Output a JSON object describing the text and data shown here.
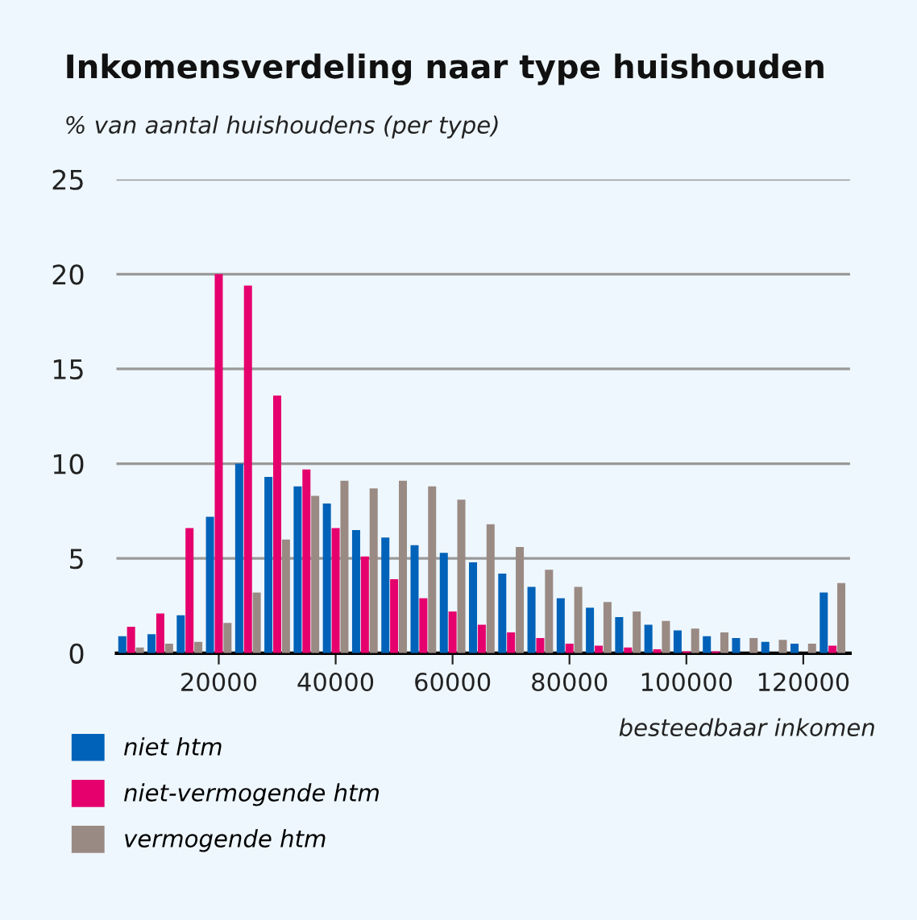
{
  "chart_data": {
    "type": "bar",
    "title": "Inkomensverdeling naar type huishouden",
    "ylabel": "% van aantal huishoudens (per type)",
    "xlabel": "besteedbaar inkomen",
    "x": [
      5000,
      10000,
      15000,
      20000,
      25000,
      30000,
      35000,
      40000,
      45000,
      50000,
      55000,
      60000,
      65000,
      70000,
      75000,
      80000,
      85000,
      90000,
      95000,
      100000,
      105000,
      110000,
      115000,
      120000,
      125000
    ],
    "series": [
      {
        "name": "niet htm",
        "color": "#0062b8",
        "values": [
          0.9,
          1.0,
          2.0,
          7.2,
          10.0,
          9.3,
          8.8,
          7.9,
          6.5,
          6.1,
          5.7,
          5.3,
          4.8,
          4.2,
          3.5,
          2.9,
          2.4,
          1.9,
          1.5,
          1.2,
          0.9,
          0.8,
          0.6,
          0.5,
          3.2
        ]
      },
      {
        "name": "niet-vermogende htm",
        "color": "#e5006d",
        "values": [
          1.4,
          2.1,
          6.6,
          20.0,
          19.4,
          13.6,
          9.7,
          6.6,
          5.1,
          3.9,
          2.9,
          2.2,
          1.5,
          1.1,
          0.8,
          0.5,
          0.4,
          0.3,
          0.2,
          0.1,
          0.1,
          null,
          null,
          null,
          0.4
        ]
      },
      {
        "name": "vermogende htm",
        "color": "#9a8a84",
        "values": [
          0.3,
          0.5,
          0.6,
          1.6,
          3.2,
          6.0,
          8.3,
          9.1,
          8.7,
          9.1,
          8.8,
          8.1,
          6.8,
          5.6,
          4.4,
          3.5,
          2.7,
          2.2,
          1.7,
          1.3,
          1.1,
          0.8,
          0.7,
          0.5,
          3.7
        ]
      }
    ],
    "xlim": [
      2500,
      128000
    ],
    "xticks": [
      20000,
      40000,
      60000,
      80000,
      100000,
      120000
    ],
    "ylim": [
      0,
      25
    ],
    "yticks": [
      0,
      5,
      10,
      15,
      20,
      25
    ],
    "grid": "y",
    "legend": "bottom"
  }
}
